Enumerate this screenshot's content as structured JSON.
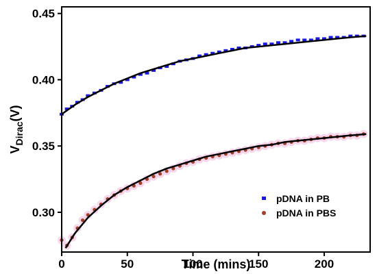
{
  "chart_data": {
    "type": "scatter",
    "title": "",
    "xlabel": "Time (mins)",
    "ylabel_main": "V",
    "ylabel_sub": "Dirac",
    "ylabel_unit": "(V)",
    "xlim": [
      0,
      235
    ],
    "ylim": [
      0.27,
      0.455
    ],
    "xticks": [
      0,
      50,
      100,
      150,
      200
    ],
    "xtick_labels": [
      "0",
      "50",
      "100",
      "150",
      "200"
    ],
    "yticks": [
      0.3,
      0.35,
      0.4,
      0.45
    ],
    "ytick_labels": [
      "0.30",
      "0.35",
      "0.40",
      "0.45"
    ],
    "grid": false,
    "legend_position": "bottom-right",
    "series": [
      {
        "name": "pDNA in PB",
        "marker": "square",
        "color": "#1a1adf",
        "x": [
          0,
          4,
          8,
          12,
          16,
          20,
          25,
          30,
          35,
          40,
          45,
          50,
          55,
          60,
          65,
          70,
          75,
          80,
          85,
          90,
          95,
          100,
          105,
          110,
          115,
          120,
          125,
          130,
          135,
          140,
          145,
          150,
          155,
          160,
          165,
          170,
          175,
          180,
          185,
          190,
          195,
          200,
          205,
          210,
          215,
          220,
          225,
          230
        ],
        "y": [
          0.374,
          0.378,
          0.38,
          0.383,
          0.385,
          0.388,
          0.39,
          0.392,
          0.395,
          0.397,
          0.398,
          0.4,
          0.402,
          0.404,
          0.405,
          0.407,
          0.409,
          0.41,
          0.412,
          0.414,
          0.415,
          0.416,
          0.418,
          0.419,
          0.42,
          0.421,
          0.422,
          0.423,
          0.424,
          0.424,
          0.425,
          0.426,
          0.427,
          0.427,
          0.428,
          0.428,
          0.429,
          0.43,
          0.43,
          0.43,
          0.431,
          0.431,
          0.432,
          0.432,
          0.432,
          0.433,
          0.433,
          0.433
        ]
      },
      {
        "name": "pDNA in PBS",
        "marker": "circle",
        "color": "#a0402a",
        "x": [
          0,
          4,
          8,
          12,
          16,
          20,
          25,
          30,
          35,
          40,
          45,
          50,
          55,
          60,
          65,
          70,
          75,
          80,
          85,
          90,
          95,
          100,
          105,
          110,
          115,
          120,
          125,
          130,
          135,
          140,
          145,
          150,
          155,
          160,
          165,
          170,
          175,
          180,
          185,
          190,
          195,
          200,
          205,
          210,
          215,
          220,
          225,
          230
        ],
        "y": [
          0.279,
          0.275,
          0.281,
          0.288,
          0.294,
          0.298,
          0.302,
          0.306,
          0.31,
          0.313,
          0.316,
          0.318,
          0.32,
          0.322,
          0.325,
          0.327,
          0.329,
          0.331,
          0.333,
          0.335,
          0.337,
          0.338,
          0.34,
          0.341,
          0.342,
          0.343,
          0.344,
          0.345,
          0.346,
          0.347,
          0.348,
          0.349,
          0.35,
          0.351,
          0.352,
          0.352,
          0.353,
          0.354,
          0.354,
          0.355,
          0.356,
          0.356,
          0.357,
          0.357,
          0.357,
          0.358,
          0.358,
          0.359
        ]
      }
    ],
    "fit_curves": [
      {
        "series": "pDNA in PB",
        "color": "#000000",
        "x": [
          0,
          10,
          20,
          30,
          40,
          50,
          60,
          70,
          80,
          90,
          100,
          110,
          120,
          130,
          140,
          150,
          160,
          170,
          180,
          190,
          200,
          210,
          220,
          232
        ],
        "y": [
          0.374,
          0.381,
          0.387,
          0.392,
          0.397,
          0.401,
          0.405,
          0.408,
          0.411,
          0.414,
          0.416,
          0.418,
          0.42,
          0.422,
          0.424,
          0.425,
          0.426,
          0.427,
          0.428,
          0.429,
          0.43,
          0.431,
          0.432,
          0.433
        ]
      },
      {
        "series": "pDNA in PBS",
        "color": "#000000",
        "x": [
          3,
          10,
          20,
          30,
          40,
          50,
          60,
          70,
          80,
          90,
          100,
          110,
          120,
          130,
          140,
          150,
          160,
          170,
          180,
          190,
          200,
          210,
          220,
          232
        ],
        "y": [
          0.273,
          0.284,
          0.296,
          0.305,
          0.313,
          0.319,
          0.324,
          0.329,
          0.333,
          0.336,
          0.339,
          0.342,
          0.344,
          0.346,
          0.348,
          0.35,
          0.351,
          0.353,
          0.354,
          0.355,
          0.356,
          0.357,
          0.358,
          0.359
        ]
      }
    ]
  }
}
